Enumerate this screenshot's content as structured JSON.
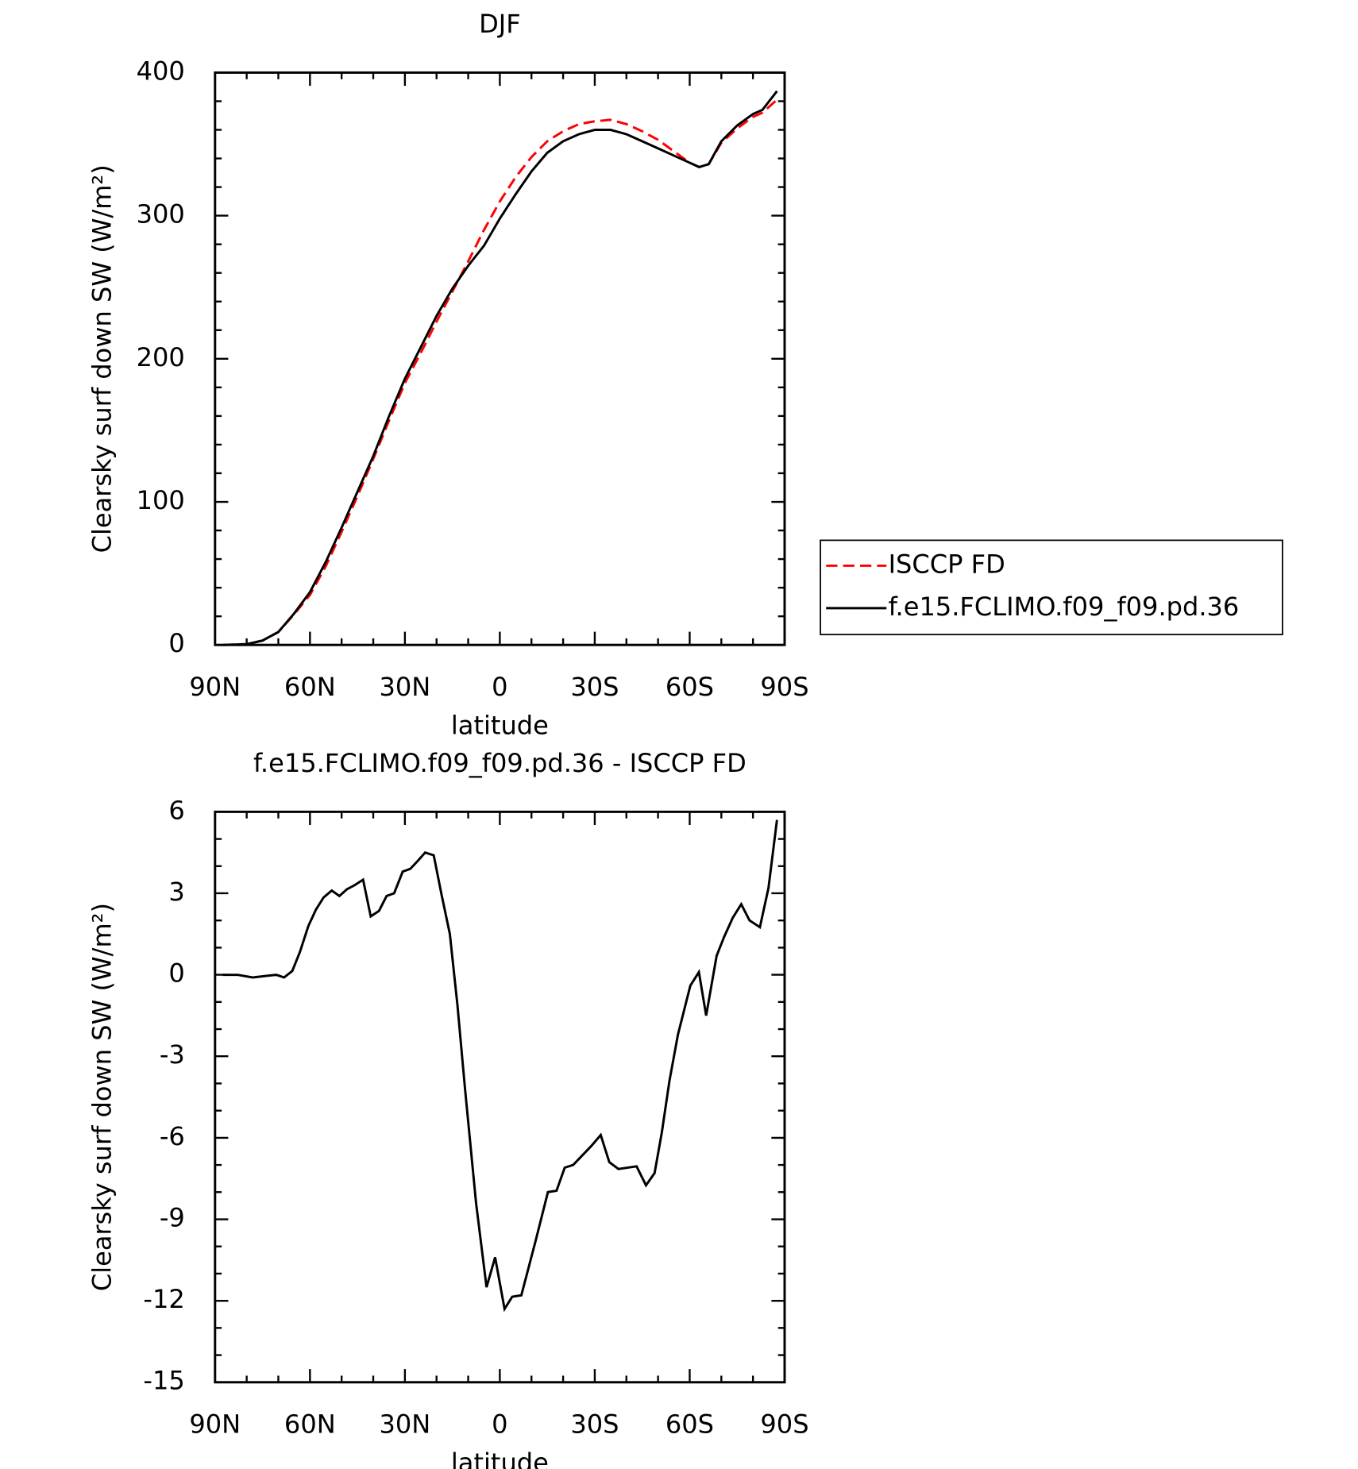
{
  "chart_data": [
    {
      "type": "line",
      "title": "DJF",
      "xlabel": "latitude",
      "ylabel": "Clearsky surf down SW (W/m²)",
      "x": [
        87.6,
        80,
        75,
        70,
        65,
        60,
        55,
        50,
        45,
        40,
        35,
        30,
        25,
        20,
        15,
        10,
        5,
        0,
        -5,
        -10,
        -15,
        -20,
        -25,
        -30,
        -35,
        -40,
        -45,
        -50,
        -55,
        -60,
        -63,
        -66,
        -70,
        -75,
        -80,
        -83,
        -87.6
      ],
      "series": [
        {
          "name": "ISCCP FD",
          "color": "#ff0000",
          "dash": true,
          "values": [
            0,
            0.5,
            3,
            9,
            21.5,
            35,
            55,
            79,
            104,
            130,
            157,
            183,
            204,
            226,
            247,
            268,
            290,
            310,
            327,
            341,
            352,
            359,
            364,
            366,
            367,
            364,
            359,
            353,
            345,
            337,
            334,
            336,
            351,
            361,
            369,
            372,
            381
          ]
        },
        {
          "name": "f.e15.FCLIMO.f09_f09.pd.36",
          "color": "#000000",
          "dash": false,
          "values": [
            0,
            0.5,
            3,
            9,
            22,
            37,
            58,
            82,
            107,
            132,
            160,
            186,
            208,
            230,
            249,
            265,
            279,
            298,
            315,
            331,
            344,
            352,
            357,
            360,
            360,
            357,
            352,
            347,
            342,
            337,
            334,
            336,
            352,
            363,
            371,
            374,
            387
          ]
        }
      ],
      "xlim": [
        90,
        -90
      ],
      "xticks": [
        {
          "value": 90,
          "label": "90N"
        },
        {
          "value": 60,
          "label": "60N"
        },
        {
          "value": 30,
          "label": "30N"
        },
        0,
        {
          "value": -30,
          "label": "30S"
        },
        {
          "value": -60,
          "label": "60S"
        },
        {
          "value": -90,
          "label": "90S"
        }
      ],
      "xminorticks": [
        80,
        70,
        50,
        40,
        20,
        10,
        -10,
        -20,
        -40,
        -50,
        -70,
        -80
      ],
      "ylim": [
        0,
        400
      ],
      "yticks": [
        0,
        100,
        200,
        300,
        400
      ],
      "yminorticks": [
        20,
        40,
        60,
        80,
        120,
        140,
        160,
        180,
        220,
        240,
        260,
        280,
        320,
        340,
        360,
        380
      ],
      "legend": "right"
    },
    {
      "type": "line",
      "title": "f.e15.FCLIMO.f09_f09.pd.36 - ISCCP FD",
      "xlabel": "latitude",
      "ylabel": "Clearsky surf down SW (W/m²)",
      "x": [
        87.6,
        82.8,
        78.1,
        73.0,
        70.6,
        68.2,
        65.6,
        63.2,
        60.5,
        58.1,
        55.7,
        53.1,
        50.7,
        48.3,
        45.9,
        43.2,
        40.8,
        38.2,
        35.8,
        33.4,
        30.7,
        28.3,
        25.9,
        23.6,
        20.9,
        18.5,
        15.8,
        13.4,
        11.0,
        7.5,
        4.2,
        1.5,
        -1.5,
        -3.9,
        -6.8,
        -11.3,
        -15.2,
        -17.9,
        -20.5,
        -23.2,
        -28.9,
        -31.9,
        -34.6,
        -37.5,
        -43.2,
        -46.2,
        -48.9,
        -51.2,
        -53.6,
        -56.3,
        -60.2,
        -62.9,
        -65.2,
        -68.5,
        -70.9,
        -73.6,
        -76.3,
        -78.9,
        -82.2,
        -84.9,
        -87.6
      ],
      "series": [
        {
          "color": "#000000",
          "values": [
            0,
            0,
            -0.1,
            -0.03,
            0,
            -0.1,
            0.14,
            0.83,
            1.8,
            2.4,
            2.85,
            3.1,
            2.9,
            3.15,
            3.3,
            3.5,
            2.15,
            2.35,
            2.9,
            3.0,
            3.8,
            3.9,
            4.2,
            4.5,
            4.4,
            3.0,
            1.5,
            -1.1,
            -4.2,
            -8.4,
            -11.5,
            -10.4,
            -12.3,
            -11.85,
            -11.8,
            -9.8,
            -8.0,
            -7.95,
            -7.1,
            -7.0,
            -6.3,
            -5.9,
            -6.9,
            -7.15,
            -7.05,
            -7.75,
            -7.3,
            -5.8,
            -3.9,
            -2.2,
            -0.4,
            0.1,
            -1.5,
            0.7,
            1.4,
            2.1,
            2.6,
            2.0,
            1.75,
            3.2,
            5.7
          ]
        }
      ],
      "xlim": [
        90,
        -90
      ],
      "xticks": [
        {
          "value": 90,
          "label": "90N"
        },
        {
          "value": 60,
          "label": "60N"
        },
        {
          "value": 30,
          "label": "30N"
        },
        0,
        {
          "value": -30,
          "label": "30S"
        },
        {
          "value": -60,
          "label": "60S"
        },
        {
          "value": -90,
          "label": "90S"
        }
      ],
      "xminorticks": [
        80,
        70,
        50,
        40,
        20,
        10,
        -10,
        -20,
        -40,
        -50,
        -70,
        -80
      ],
      "ylim": [
        -15,
        6
      ],
      "yticks": [
        -15,
        -12,
        -9,
        -6,
        -3,
        0,
        3,
        6
      ],
      "yminorticks": [
        -14,
        -13,
        -11,
        -10,
        -8,
        -7,
        -5,
        -4,
        -2,
        -1,
        1,
        2,
        4,
        5
      ]
    }
  ]
}
